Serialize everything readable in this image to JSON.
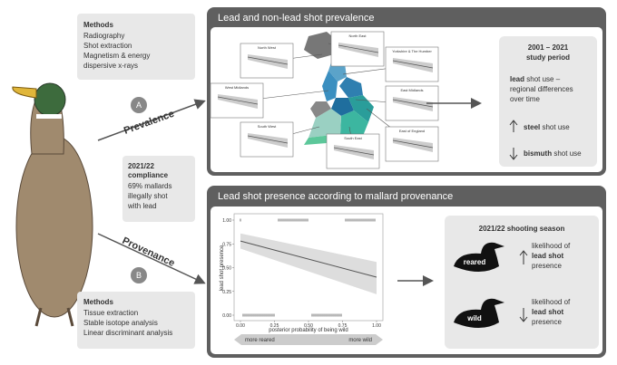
{
  "methods_top": {
    "title": "Methods",
    "items": [
      "Radiography",
      "Shot extraction",
      "Magnetism & energy",
      "dispersive x-rays"
    ]
  },
  "compliance": {
    "title": [
      "2021/22",
      "compliance"
    ],
    "lines": [
      "69% mallards",
      "illegally shot",
      "with lead"
    ]
  },
  "methods_bottom": {
    "title": "Methods",
    "items": [
      "Tissue extraction",
      "Stable isotope analysis",
      "Linear discriminant analysis"
    ]
  },
  "labels": {
    "a": "A",
    "b": "B",
    "prevalence": "Prevalence",
    "provenance": "Provenance"
  },
  "top_panel": {
    "title": "Lead and non-lead shot prevalence",
    "regions": [
      "North West",
      "North East",
      "Yorkshire & The Humber",
      "West Midlands",
      "East Midlands",
      "South West",
      "East of England",
      "South East"
    ],
    "summary": {
      "period": [
        "2001 – 2021",
        "study period"
      ],
      "lead": {
        "bold": "lead",
        "text": "shot use –"
      },
      "lead_lines": [
        "regional differences",
        "over time"
      ],
      "steel": {
        "bold": "steel",
        "text": "shot use"
      },
      "bismuth": {
        "bold": "bismuth",
        "text": "shot use"
      }
    }
  },
  "bottom_panel": {
    "title": "Lead shot presence according to mallard provenance",
    "plot": {
      "ylabel": "lead shot presence",
      "xlabel": "posterior probability of being wild",
      "xlim": [
        0,
        1
      ],
      "ylim": [
        0,
        1
      ],
      "xticks": [
        {
          "value": 0,
          "label": "0.00"
        },
        {
          "value": 0.25,
          "label": "0.25"
        },
        {
          "value": 0.5,
          "label": "0.50"
        },
        {
          "value": 0.75,
          "label": "0.75"
        },
        {
          "value": 1,
          "label": "1.00"
        }
      ],
      "yticks": [
        {
          "value": 0,
          "label": "0.00"
        },
        {
          "value": 0.25,
          "label": "0.25"
        },
        {
          "value": 0.5,
          "label": "0.50"
        },
        {
          "value": 0.75,
          "label": "0.75"
        },
        {
          "value": 1,
          "label": "1.00"
        }
      ],
      "fit": {
        "x": [
          0,
          1
        ],
        "y": [
          0.78,
          0.4
        ],
        "lower": [
          0.7,
          0.22
        ],
        "upper": [
          0.86,
          0.56
        ]
      }
    },
    "scale": {
      "left": "more reared",
      "right": "more wild"
    },
    "season": {
      "title": "2021/22 shooting season",
      "groups": [
        {
          "label": "reared",
          "lines": [
            "likelihood of",
            "lead shot",
            "presence"
          ]
        },
        {
          "label": "wild",
          "lines": [
            "likelihood of",
            "lead shot",
            "presence"
          ]
        }
      ]
    }
  }
}
